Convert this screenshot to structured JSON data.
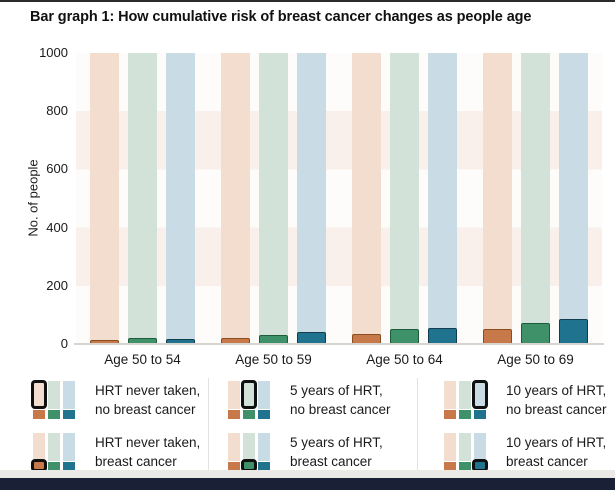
{
  "chart_data": {
    "type": "bar",
    "title": "Bar graph 1: How cumulative risk of breast cancer changes as people age",
    "ylabel": "No. of people",
    "ylim": [
      0,
      1000
    ],
    "yticks": [
      "0",
      "200",
      "400",
      "600",
      "800",
      "1000"
    ],
    "grid_bands": [
      "#fdfcfa",
      "#f9f0eb"
    ],
    "categories": [
      "Age 50 to 54",
      "Age 50 to 59",
      "Age 50 to 64",
      "Age 50 to 69"
    ],
    "cohort_size_per_bar": 1000,
    "series": [
      {
        "name": "HRT never taken",
        "breast_cancer_cases_per_1000": [
          13,
          21,
          36,
          50
        ],
        "light_color": "#f3ddcf",
        "dark_color": "#c8794a",
        "dark_border": "#8a4d20"
      },
      {
        "name": "5 years of HRT",
        "breast_cancer_cases_per_1000": [
          20,
          31,
          50,
          72
        ],
        "light_color": "#d3e2d8",
        "dark_color": "#3f9169",
        "dark_border": "#1e5c3b"
      },
      {
        "name": "10 years of HRT",
        "breast_cancer_cases_per_1000": [
          18,
          41,
          56,
          85
        ],
        "light_color": "#c9dce6",
        "dark_color": "#20738f",
        "dark_border": "#123c4f"
      }
    ],
    "legend_position": "bottom"
  },
  "legend": {
    "columns": [
      {
        "items": [
          {
            "line1": "HRT never taken,",
            "line2": "no breast cancer",
            "series_index": 0,
            "highlight": "light"
          },
          {
            "line1": "HRT never taken,",
            "line2": "breast cancer",
            "series_index": 0,
            "highlight": "dark"
          }
        ]
      },
      {
        "items": [
          {
            "line1": "5 years of HRT,",
            "line2": "no breast cancer",
            "series_index": 1,
            "highlight": "light"
          },
          {
            "line1": "5 years of HRT,",
            "line2": "breast cancer",
            "series_index": 1,
            "highlight": "dark"
          }
        ]
      },
      {
        "items": [
          {
            "line1": "10 years of HRT,",
            "line2": "no breast cancer",
            "series_index": 2,
            "highlight": "light"
          },
          {
            "line1": "10 years of HRT,",
            "line2": "breast cancer",
            "series_index": 2,
            "highlight": "dark"
          }
        ]
      }
    ]
  },
  "colors": {
    "top_border": "#2b2b2b",
    "baseline": "#d8d4d0",
    "text": "#1a1a1a",
    "legend_divider": "#e3e1de",
    "footer_spacer": "#ebe9e6",
    "footer_bar": "#1a2136",
    "highlight_outline": "#101010"
  }
}
